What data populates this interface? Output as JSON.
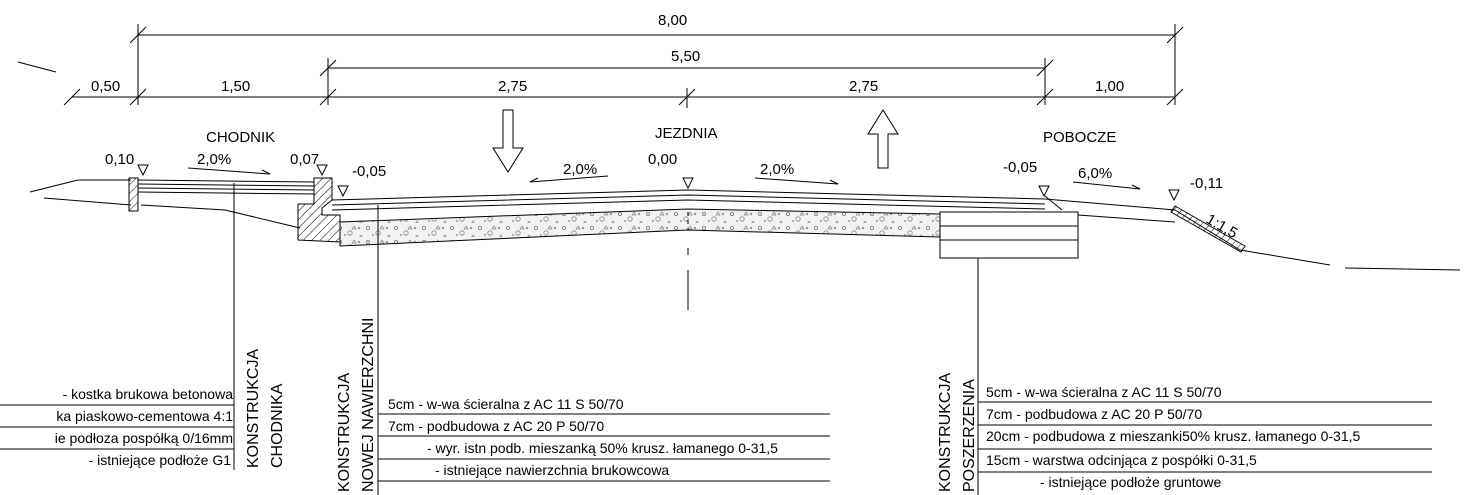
{
  "dimensions": {
    "total": "8,00",
    "carriageway": "5,50",
    "segments": [
      "0,50",
      "1,50",
      "2,75",
      "2,75",
      "1,00"
    ]
  },
  "zones": {
    "sidewalk": "CHODNIK",
    "roadway": "JEZDNIA",
    "shoulder": "POBOCZE"
  },
  "levels": [
    "0,10",
    "0,07",
    "-0,05",
    "0,00",
    "-0,05",
    "-0,11"
  ],
  "slopes": [
    "2,0%",
    "2,0%",
    "2,0%",
    "6,0%"
  ],
  "embankment": "1:1,5",
  "constructions": {
    "sidewalk": {
      "title": [
        "KONSTRUKCJA",
        "CHODNIKA"
      ],
      "layers": [
        "-  kostka brukowa betonowa",
        "ka piaskowo-cementowa 4:1",
        "ie podłoza pospółką 0/16mm",
        "- istniejące podłoże G1"
      ]
    },
    "new_surface": {
      "title": [
        "KONSTRUKCJA",
        "NOWEJ NAWIERZCHNI"
      ],
      "layers": [
        "5cm -  w-wa ścieralna z  AC 11 S 50/70",
        "7cm -  podbudowa z  AC 20 P 50/70",
        "- wyr. istn podb. mieszanką 50% krusz. łamanego 0-31,5",
        "- istniejące nawierzchnia brukowcowa"
      ]
    },
    "widening": {
      "title": [
        "KONSTRUKCJA",
        "POSZERZENIA"
      ],
      "layers": [
        "5cm -  w-wa ścieralna z  AC 11 S 50/70",
        "7cm -  podbudowa z  AC 20 P 50/70",
        "20cm - podbudowa z mieszanki50% krusz. łamanego 0-31,5",
        "15cm - warstwa odcinjąca z pospółki 0-31,5",
        "- istniejące podłoże gruntowe"
      ]
    }
  }
}
